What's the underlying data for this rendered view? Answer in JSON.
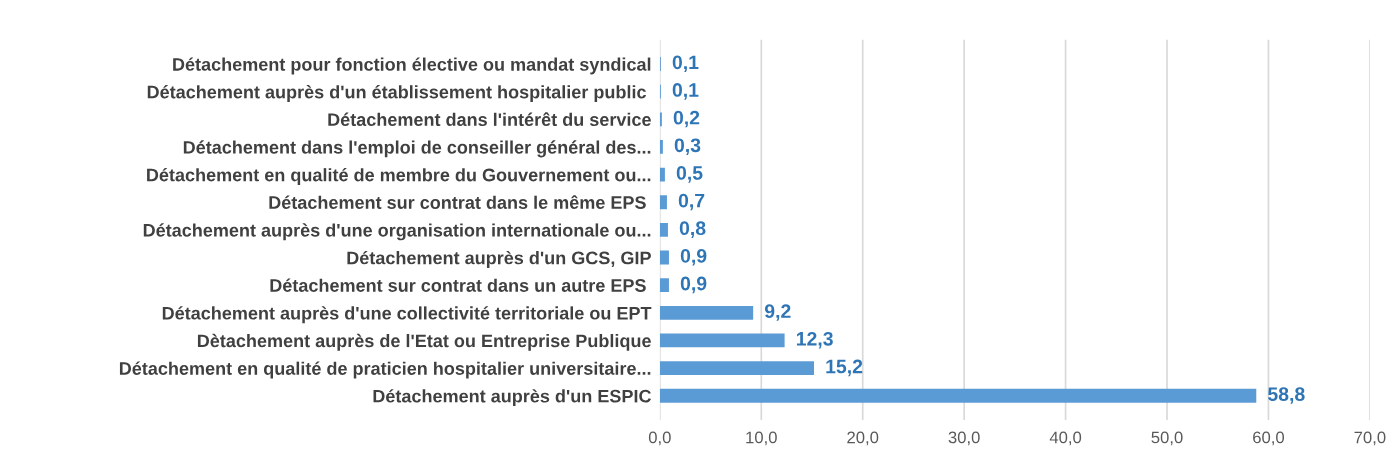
{
  "chart_data": {
    "type": "bar",
    "orientation": "horizontal",
    "categories": [
      "Détachement pour fonction élective ou mandat syndical",
      "Détachement auprès d'un établissement hospitalier public ",
      "Détachement dans l'intérêt du service",
      "Détachement dans l'emploi de conseiller général des...",
      "Détachement en qualité de membre du Gouvernement ou...",
      "Détachement sur contrat dans le même EPS ",
      "Détachement auprès d'une organisation internationale ou...",
      "Détachement auprès d'un GCS, GIP",
      "Détachement sur contrat dans un autre EPS ",
      "Détachement auprès d'une collectivité territoriale ou EPT",
      "Dètachement auprès de l'Etat ou Entreprise Publique",
      "Détachement en qualité de praticien hospitalier universitaire...",
      "Détachement auprès d'un ESPIC"
    ],
    "values": [
      0.1,
      0.1,
      0.2,
      0.3,
      0.5,
      0.7,
      0.8,
      0.9,
      0.9,
      9.2,
      12.3,
      15.2,
      58.8
    ],
    "value_labels": [
      "0,1",
      "0,1",
      "0,2",
      "0,3",
      "0,5",
      "0,7",
      "0,8",
      "0,9",
      "0,9",
      "9,2",
      "12,3",
      "15,2",
      "58,8"
    ],
    "color": "#5b9bd5",
    "xlim": [
      0,
      70
    ],
    "xticks": [
      {
        "value": 0,
        "label": "0,0"
      },
      {
        "value": 10,
        "label": "10,0"
      },
      {
        "value": 20,
        "label": "20,0"
      },
      {
        "value": 30,
        "label": "30,0"
      },
      {
        "value": 40,
        "label": "40,0"
      },
      {
        "value": 50,
        "label": "50,0"
      },
      {
        "value": 60,
        "label": "60,0"
      },
      {
        "value": 70,
        "label": "70,0"
      }
    ],
    "grid": "x"
  }
}
